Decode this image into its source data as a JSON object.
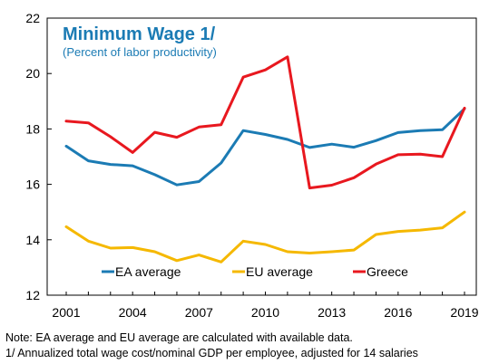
{
  "chart_data": {
    "type": "line",
    "title": "Minimum Wage 1/",
    "subtitle": "(Percent of labor productivity)",
    "xlabel": "",
    "ylabel": "",
    "x": [
      2001,
      2002,
      2003,
      2004,
      2005,
      2006,
      2007,
      2008,
      2009,
      2010,
      2011,
      2012,
      2013,
      2014,
      2015,
      2016,
      2017,
      2018,
      2019
    ],
    "x_ticks": [
      "2001",
      "2004",
      "2007",
      "2010",
      "2013",
      "2016",
      "2019"
    ],
    "y_ticks": [
      "12",
      "14",
      "16",
      "18",
      "20",
      "22"
    ],
    "xlim": [
      2001,
      2019
    ],
    "ylim": [
      12,
      22
    ],
    "grid": false,
    "legend_position": "bottom",
    "series": [
      {
        "name": "EA average",
        "color": "#1b7bb4",
        "values": [
          17.38,
          16.85,
          16.72,
          16.67,
          16.35,
          15.98,
          16.1,
          16.77,
          17.94,
          17.8,
          17.62,
          17.33,
          17.45,
          17.34,
          17.58,
          17.87,
          17.94,
          17.97,
          18.73
        ]
      },
      {
        "name": "EU average",
        "color": "#f5b800",
        "values": [
          14.47,
          13.95,
          13.7,
          13.72,
          13.57,
          13.25,
          13.45,
          13.2,
          13.95,
          13.83,
          13.57,
          13.52,
          13.57,
          13.63,
          14.19,
          14.3,
          14.35,
          14.43,
          15.0
        ]
      },
      {
        "name": "Greece",
        "color": "#e8181f",
        "values": [
          18.28,
          18.22,
          17.72,
          17.15,
          17.88,
          17.7,
          18.07,
          18.15,
          19.87,
          20.13,
          20.6,
          15.87,
          15.97,
          16.24,
          16.73,
          17.07,
          17.09,
          17.0,
          18.75
        ]
      }
    ]
  },
  "notes": {
    "line1": "Note: EA average and EU average are calculated with available data.",
    "line2": "1/ Annualized total wage cost/nominal GDP per employee, adjusted for 14 salaries"
  }
}
